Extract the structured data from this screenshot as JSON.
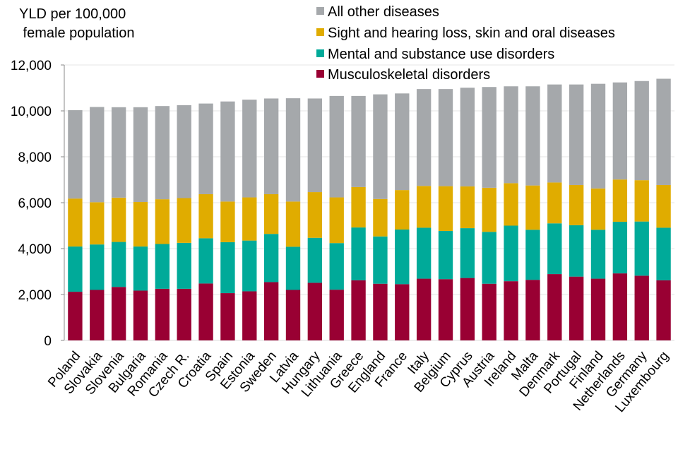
{
  "chart_data": {
    "type": "bar",
    "stacked": true,
    "title": "",
    "ylabel": "YLD per 100,000\n female population",
    "ylabel_lines": [
      "YLD per 100,000",
      " female population"
    ],
    "xlabel": "",
    "ylim": [
      0,
      12000
    ],
    "yticks": [
      0,
      2000,
      4000,
      6000,
      8000,
      10000,
      12000
    ],
    "ytick_labels": [
      "0",
      "2,000",
      "4,000",
      "6,000",
      "8,000",
      "10,000",
      "12,000"
    ],
    "grid": true,
    "legend_position": "top-right",
    "categories": [
      "Poland",
      "Slovakia",
      "Slovenia",
      "Bulgaria",
      "Romania",
      "Czech R.",
      "Croatia",
      "Spain",
      "Estonia",
      "Sweden",
      "Latvia",
      "Hungary",
      "Lithuania",
      "Greece",
      "England",
      "France",
      "Italy",
      "Belgium",
      "Cyprus",
      "Austria",
      "Ireland",
      "Malta",
      "Denmark",
      "Portugal",
      "Finland",
      "Netherlands",
      "Germany",
      "Luxembourg"
    ],
    "series": [
      {
        "name": "Musculoskeletal disorders",
        "color": "#990033",
        "values": [
          2120,
          2200,
          2330,
          2170,
          2250,
          2250,
          2480,
          2060,
          2140,
          2540,
          2200,
          2510,
          2210,
          2620,
          2470,
          2450,
          2690,
          2670,
          2720,
          2470,
          2580,
          2640,
          2890,
          2780,
          2690,
          2920,
          2820,
          2620
        ]
      },
      {
        "name": "Mental and substance use disorders",
        "color": "#00AA99",
        "values": [
          1970,
          1980,
          1960,
          1920,
          1950,
          2000,
          1970,
          2220,
          2210,
          2100,
          1880,
          1960,
          2030,
          2300,
          2060,
          2380,
          2220,
          2100,
          2170,
          2260,
          2420,
          2180,
          2210,
          2240,
          2130,
          2250,
          2360,
          2290
        ]
      },
      {
        "name": "Sight and hearing loss, skin and oral diseases",
        "color": "#E0AC00",
        "values": [
          2090,
          1840,
          1930,
          1940,
          1950,
          1950,
          1920,
          1770,
          1880,
          1730,
          1970,
          1990,
          1990,
          1760,
          1630,
          1720,
          1820,
          1950,
          1820,
          1920,
          1850,
          1930,
          1780,
          1750,
          1800,
          1840,
          1800,
          1860
        ]
      },
      {
        "name": "All other diseases",
        "color": "#A5A8AB",
        "values": [
          3850,
          4150,
          3940,
          4130,
          4060,
          4050,
          3950,
          4360,
          4260,
          4170,
          4500,
          4080,
          4420,
          3970,
          4560,
          4210,
          4220,
          4230,
          4300,
          4390,
          4220,
          4320,
          4270,
          4380,
          4560,
          4230,
          4320,
          4630
        ]
      }
    ],
    "totals": [
      10030,
      10170,
      10160,
      10160,
      10210,
      10250,
      10320,
      10410,
      10490,
      10540,
      10550,
      10540,
      10650,
      10650,
      10720,
      10760,
      10950,
      10950,
      11010,
      11040,
      11070,
      11070,
      11150,
      11150,
      11180,
      11240,
      11300,
      11400
    ]
  },
  "legend": {
    "items": [
      {
        "label": "All other diseases",
        "color": "#A5A8AB"
      },
      {
        "label": "Sight and hearing loss, skin and oral diseases",
        "color": "#E0AC00"
      },
      {
        "label": "Mental and substance use disorders",
        "color": "#00AA99"
      },
      {
        "label": "Musculoskeletal disorders",
        "color": "#990033"
      }
    ]
  }
}
